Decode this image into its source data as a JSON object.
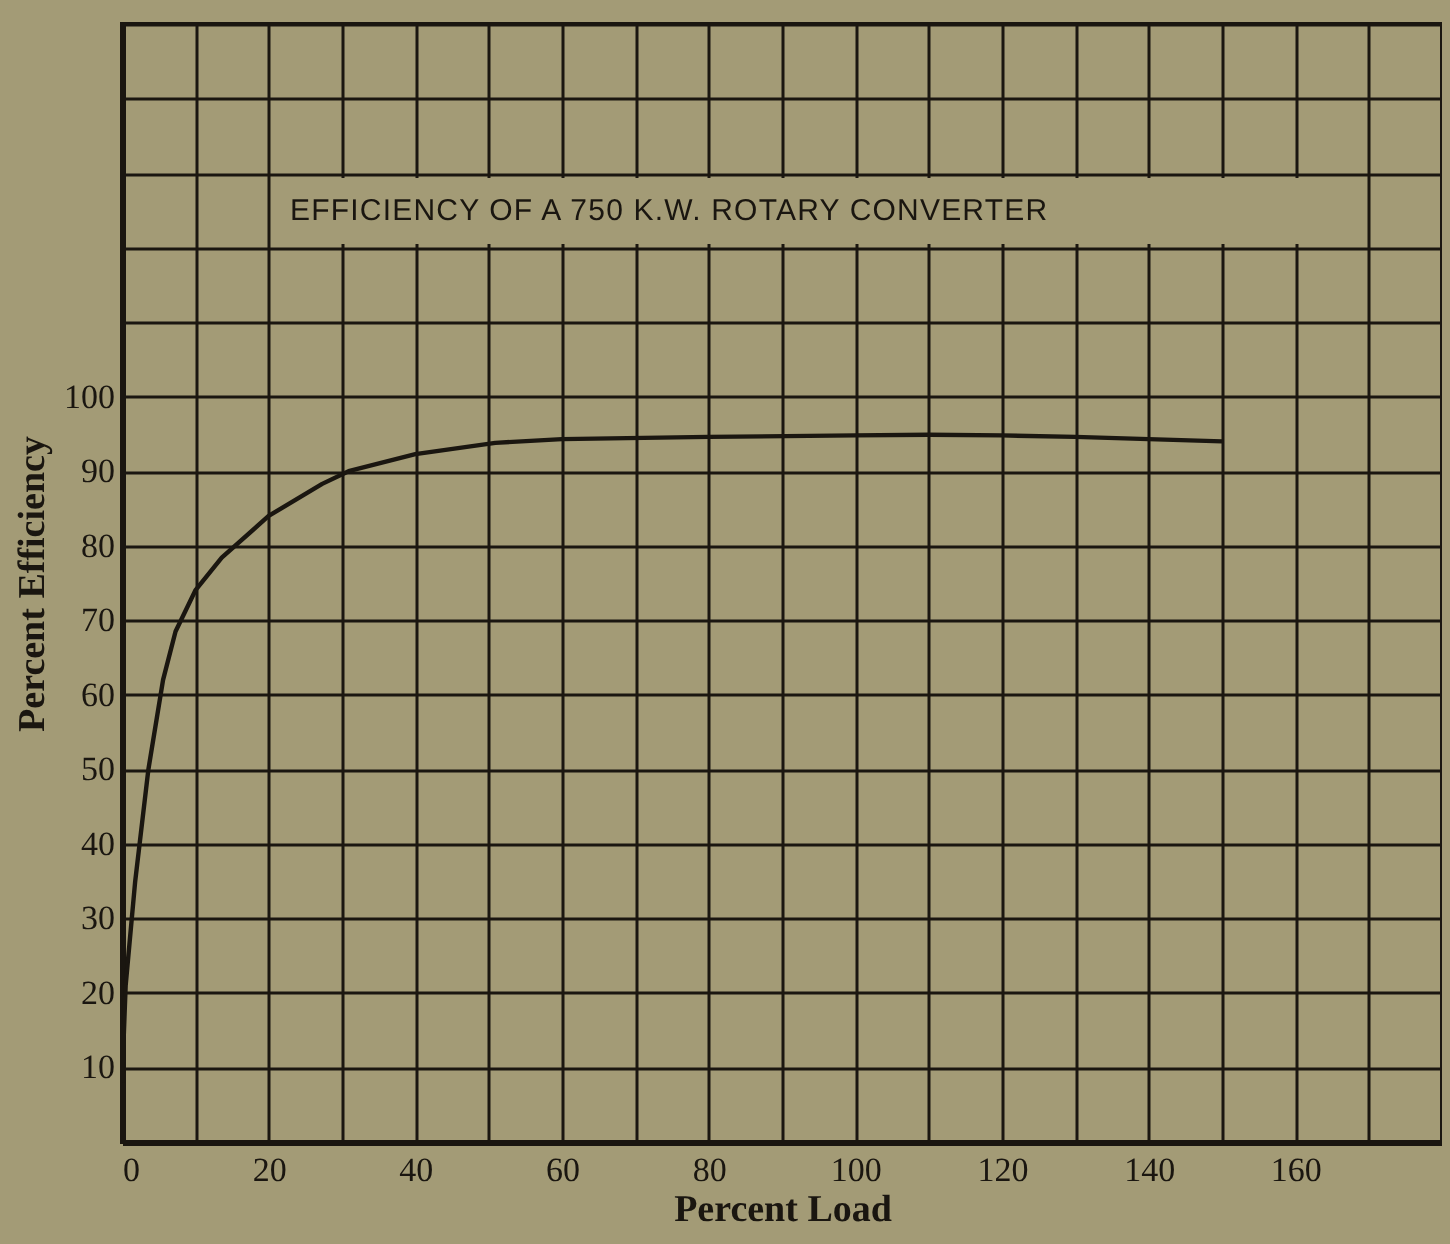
{
  "chart_data": {
    "type": "line",
    "title": "EFFICIENCY OF A 750 K.W. ROTARY CONVERTER",
    "xlabel": "Percent Load",
    "ylabel": "Percent Efficiency",
    "x": [
      0,
      0.5,
      1.8,
      3.6,
      5.6,
      7.3,
      10,
      13.6,
      20,
      27.3,
      30.9,
      40,
      50.9,
      60,
      80,
      100,
      110,
      120,
      130,
      140,
      150
    ],
    "series": [
      {
        "color": "#1a1610",
        "values": [
          8,
          21,
          35,
          50,
          62,
          68.5,
          74,
          78.4,
          84,
          88.3,
          90,
          92.3,
          93.8,
          94.3,
          94.6,
          94.8,
          94.9,
          94.8,
          94.6,
          94.3,
          94.0
        ]
      }
    ],
    "xlim": [
      0,
      180
    ],
    "ylim": [
      0,
      150
    ],
    "xticks": [
      0,
      {
        "value": 10,
        "label": null
      },
      20,
      {
        "value": 30,
        "label": null
      },
      40,
      {
        "value": 50,
        "label": null
      },
      60,
      {
        "value": 70,
        "label": null
      },
      80,
      {
        "value": 90,
        "label": null
      },
      100,
      {
        "value": 110,
        "label": null
      },
      120,
      {
        "value": 130,
        "label": null
      },
      140,
      {
        "value": 150,
        "label": null
      },
      160,
      {
        "value": 170,
        "label": null
      },
      {
        "value": 180,
        "label": null
      }
    ],
    "yticks": [
      10,
      20,
      30,
      40,
      50,
      60,
      70,
      80,
      90,
      100,
      {
        "value": 110,
        "label": null
      },
      {
        "value": 120,
        "label": null
      },
      {
        "value": 130,
        "label": null
      },
      {
        "value": 140,
        "label": null
      },
      {
        "value": 150,
        "label": null
      }
    ],
    "grid": true,
    "marker": "none",
    "line_style": "solid"
  }
}
